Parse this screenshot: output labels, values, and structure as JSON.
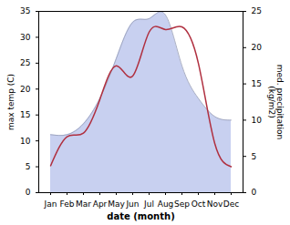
{
  "chart_data": {
    "type": "line",
    "xlabel": "date (month)",
    "ylabel": "max temp (C)",
    "y2label": "med. precipitation\n(kg/m2)",
    "categories": [
      "Jan",
      "Feb",
      "Mar",
      "Apr",
      "May",
      "Jun",
      "Jul",
      "Aug",
      "Sep",
      "Oct",
      "Nov",
      "Dec"
    ],
    "series": [
      {
        "type": "area",
        "axis": "y2",
        "color": "#c8d0f0",
        "values": [
          8.0,
          8.0,
          9.5,
          13.0,
          18.5,
          23.5,
          24.0,
          24.5,
          17.5,
          13.0,
          10.5,
          10.0
        ]
      },
      {
        "type": "line",
        "color": "#b03040",
        "values": [
          5.2,
          10.8,
          11.5,
          18.0,
          24.5,
          22.5,
          31.0,
          31.5,
          32.0,
          25.0,
          9.5,
          5.0
        ]
      }
    ],
    "ylim": [
      0,
      35
    ],
    "yticks": [
      0,
      5,
      10,
      15,
      20,
      25,
      30,
      35
    ],
    "y2lim": [
      0,
      25
    ],
    "y2ticks": [
      0,
      5,
      10,
      15,
      20,
      25
    ],
    "grid": false
  }
}
